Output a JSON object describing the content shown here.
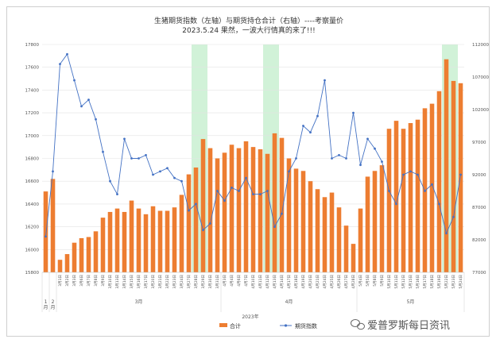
{
  "chart_data": {
    "type": "bar+line",
    "title": "生猪期货指数（左轴）与期货持仓合计（右轴）----考察量价",
    "subtitle": "2023.5.24 果然，一波大行情真的来了!!!",
    "categories": [
      "1月",
      "2月",
      "3月1日",
      "3月2日",
      "3月3日",
      "3月6日",
      "3月7日",
      "3月8日",
      "3月9日",
      "3月10日",
      "3月13日",
      "3月14日",
      "3月15日",
      "3月16日",
      "3月17日",
      "3月20日",
      "3月21日",
      "3月22日",
      "3月23日",
      "3月24日",
      "3月27日",
      "3月28日",
      "3月29日",
      "3月30日",
      "3月31日",
      "4月3日",
      "4月4日",
      "4月6日",
      "4月7日",
      "4月10日",
      "4月11日",
      "4月12日",
      "4月13日",
      "4月14日",
      "4月17日",
      "4月18日",
      "4月19日",
      "4月20日",
      "4月21日",
      "4月24日",
      "4月25日",
      "4月26日",
      "4月27日",
      "4月28日",
      "5月4日",
      "5月5日",
      "5月8日",
      "5月9日",
      "5月10日",
      "5月11日",
      "5月12日",
      "5月15日",
      "5月16日",
      "5月17日",
      "5月18日",
      "5月19日",
      "5月22日",
      "5月23日",
      "5月24日"
    ],
    "group_labels": [
      "1\n月",
      "2\n月",
      "3月",
      "4月",
      "5月"
    ],
    "axis_title": "2023年",
    "left_axis": {
      "min": 15800,
      "max": 17800,
      "ticks": [
        15800,
        16000,
        16200,
        16400,
        16600,
        16800,
        17000,
        17200,
        17400,
        17600,
        17800
      ]
    },
    "right_axis": {
      "min": 77000,
      "max": 112000,
      "ticks": [
        77000,
        82000,
        87000,
        92000,
        97000,
        102000,
        107000,
        112000
      ]
    },
    "series": [
      {
        "name": "合计",
        "axis": "left",
        "kind": "bar",
        "color": "#ED7D31",
        "values": [
          16510,
          16620,
          15910,
          15960,
          16060,
          16100,
          16110,
          16160,
          16280,
          16330,
          16360,
          16330,
          16430,
          16360,
          16310,
          16380,
          16340,
          16340,
          16370,
          16480,
          16660,
          16720,
          16970,
          16890,
          16800,
          16850,
          16920,
          16890,
          16950,
          16900,
          16880,
          16840,
          17020,
          16980,
          16800,
          16710,
          16690,
          16600,
          16530,
          16460,
          16500,
          16370,
          16210,
          16050,
          16360,
          16640,
          16690,
          16740,
          17060,
          17130,
          17060,
          17110,
          17140,
          17240,
          17280,
          17390,
          17670,
          17480,
          17460
        ]
      },
      {
        "name": "期货指数",
        "axis": "right",
        "kind": "line",
        "color": "#4472C4",
        "values": [
          82500,
          92500,
          109000,
          110500,
          106500,
          102500,
          103500,
          100500,
          95500,
          91000,
          89000,
          97500,
          94500,
          94500,
          95000,
          92000,
          92500,
          93000,
          91500,
          91000,
          86500,
          87500,
          83500,
          84500,
          89500,
          88000,
          90000,
          89500,
          91500,
          89000,
          89000,
          89500,
          84000,
          86000,
          92500,
          94500,
          99500,
          98500,
          101000,
          106500,
          94500,
          95000,
          94500,
          101500,
          93500,
          97500,
          96000,
          94000,
          89500,
          87500,
          92000,
          92500,
          92000,
          89500,
          90500,
          87500,
          83000,
          85500,
          92000
        ]
      }
    ],
    "highlight_color": "#C6EFCE",
    "legend": {
      "position": "bottom",
      "items": [
        "合计",
        "期货指数"
      ]
    }
  },
  "watermark": "爱普罗斯每日资讯"
}
